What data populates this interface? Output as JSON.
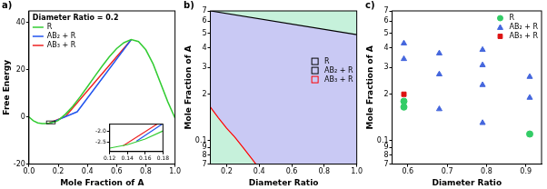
{
  "chart_data": [
    {
      "panel": "a)",
      "type": "line",
      "annotation": "Diameter Ratio = 0.2",
      "x_label": "Mole Fraction of A",
      "y_label": "Free Energy",
      "xlim": [
        0,
        1
      ],
      "xticks": [
        {
          "value": 0,
          "label": "0.0"
        },
        0.2,
        0.4,
        0.6,
        0.8,
        {
          "value": 1,
          "label": "1.0"
        }
      ],
      "ylim": [
        -20,
        45
      ],
      "yticks": [
        -20,
        0,
        20,
        40
      ],
      "legend": "top-left",
      "grid": false,
      "series": [
        {
          "name": "R",
          "color": "#33cc33",
          "x": [
            0,
            0.03,
            0.06,
            0.09,
            0.11,
            0.12,
            0.14,
            0.16,
            0.18,
            0.2,
            0.25,
            0.3,
            0.35,
            0.4,
            0.45,
            0.5,
            0.55,
            0.6,
            0.65,
            0.7,
            0.75,
            0.8,
            0.85,
            0.9,
            0.95,
            1
          ],
          "values": [
            0,
            -1.6,
            -2.5,
            -2.8,
            -2.8,
            -2.75,
            -2.6,
            -2.35,
            -2.0,
            -1.5,
            1.2,
            4.5,
            8.5,
            12.8,
            17.2,
            21.5,
            25.5,
            29,
            31.5,
            32.8,
            32,
            28.5,
            22.5,
            14.5,
            6.5,
            -0.5
          ]
        },
        {
          "name": "AB₂ + R",
          "color": "#2255ee",
          "x": [
            0.15,
            0.33,
            0.7
          ],
          "values": [
            -2.45,
            2.2,
            32.8
          ]
        },
        {
          "name": "AB₃ + R",
          "color": "#ee2222",
          "x": [
            0.135,
            0.25,
            0.7
          ],
          "values": [
            -2.65,
            0.2,
            32.8
          ]
        }
      ],
      "inset": {
        "xlim": [
          0.12,
          0.18
        ],
        "xticks": [
          0.12,
          0.14,
          0.16,
          0.18
        ],
        "ylim": [
          -2.9,
          -1.7
        ],
        "yticks": [
          {
            "value": -2.5,
            "label": "-2.5"
          },
          {
            "value": -2,
            "label": "-2.0"
          }
        ]
      }
    },
    {
      "panel": "b)",
      "type": "area",
      "x_label": "Diameter Ratio",
      "y_label": "Mole Fraction of A",
      "xlim": [
        0.1,
        1.0
      ],
      "xticks": [
        0.2,
        0.4,
        0.6,
        0.8,
        {
          "value": 1,
          "label": "1.0"
        }
      ],
      "ylim": [
        0.07,
        0.7
      ],
      "yticks": [
        {
          "value": 0.07,
          "label": "7"
        },
        {
          "value": 0.08,
          "label": "8"
        },
        {
          "value": 0.09,
          "label": "9"
        },
        0.1,
        {
          "value": 0.2,
          "label": "2"
        },
        {
          "value": 0.3,
          "label": "3"
        },
        {
          "value": 0.4,
          "label": "4"
        },
        {
          "value": 0.5,
          "label": "5"
        },
        {
          "value": 0.6,
          "label": "6"
        },
        {
          "value": 0.7,
          "label": "7"
        }
      ],
      "log": "y",
      "legend": "right",
      "grid": false,
      "series": [
        {
          "name": "R",
          "color": "#000000",
          "region_color": "#c6f1db",
          "fill": "end",
          "x": [
            0.1,
            1.0
          ],
          "values": [
            0.7,
            0.49
          ]
        },
        {
          "name": "AB₂ + R",
          "color": "#000000",
          "region_color": "#c9c9f4",
          "fill": "background"
        },
        {
          "name": "AB₃ + R",
          "color": "#ff0000",
          "region_color": "#c6f1db",
          "fill": "start",
          "x": [
            0.1,
            0.15,
            0.2,
            0.25,
            0.3,
            0.35,
            0.38
          ],
          "values": [
            0.165,
            0.14,
            0.12,
            0.105,
            0.09,
            0.077,
            0.07
          ]
        }
      ]
    },
    {
      "panel": "c)",
      "type": "scatter",
      "x_label": "Diameter Ratio",
      "y_label": "Mole Fraction of A",
      "xlim": [
        0.56,
        0.94
      ],
      "xticks": [
        0.6,
        0.7,
        0.8,
        0.9
      ],
      "ylim": [
        0.07,
        0.7
      ],
      "yticks": [
        {
          "value": 0.07,
          "label": "7"
        },
        {
          "value": 0.08,
          "label": "8"
        },
        {
          "value": 0.09,
          "label": "9"
        },
        0.1,
        {
          "value": 0.2,
          "label": "2"
        },
        {
          "value": 0.3,
          "label": "3"
        },
        {
          "value": 0.4,
          "label": "4"
        },
        {
          "value": 0.5,
          "label": "5"
        },
        {
          "value": 0.6,
          "label": "6"
        },
        {
          "value": 0.7,
          "label": "7"
        }
      ],
      "log": "y",
      "legend": "top-right",
      "grid": false,
      "series": [
        {
          "name": "R",
          "color": "#33cc66",
          "marker": "circle",
          "x": [
            0.59,
            0.59,
            0.91
          ],
          "values": [
            0.18,
            0.165,
            0.11
          ]
        },
        {
          "name": "AB₂ + R",
          "color": "#4466dd",
          "marker": "triangle",
          "x": [
            0.59,
            0.59,
            0.68,
            0.68,
            0.68,
            0.79,
            0.79,
            0.79,
            0.79,
            0.91,
            0.91
          ],
          "values": [
            0.43,
            0.34,
            0.37,
            0.27,
            0.16,
            0.39,
            0.31,
            0.23,
            0.13,
            0.26,
            0.19
          ]
        },
        {
          "name": "AB₃ + R",
          "color": "#dd1111",
          "marker": "square",
          "x": [
            0.59
          ],
          "values": [
            0.2
          ]
        }
      ]
    }
  ]
}
